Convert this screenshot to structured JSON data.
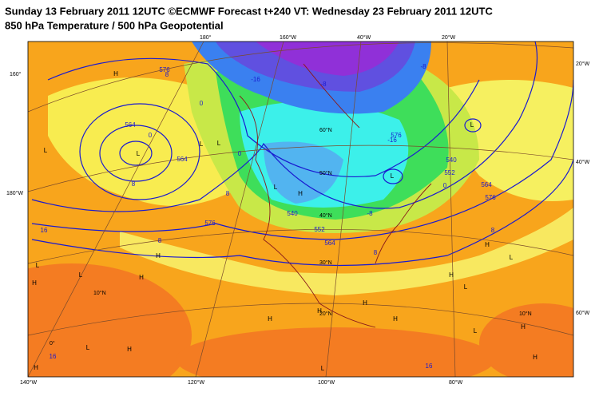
{
  "header": {
    "title": "Sunday 13 February 2011 12UTC ©ECMWF Forecast t+240 VT: Wednesday 23 February 2011 12UTC",
    "subtitle": "850 hPa Temperature / 500 hPa Geopotential"
  },
  "map": {
    "top_labels": [
      "180°",
      "160°W",
      "40°W",
      "20°W"
    ],
    "left_labels": [
      "160°",
      "180°W"
    ],
    "right_labels": [
      "20°W",
      "40°W",
      "60°W"
    ],
    "bottom_labels": [
      "140°W",
      "120°W",
      "100°W",
      "80°W"
    ],
    "lat_labels": [
      "60°N",
      "50°N",
      "40°N",
      "30°N",
      "20°N",
      "10°N",
      "10°N",
      "0°"
    ],
    "contour_labels": [
      "576",
      "8",
      "0",
      "564",
      "0",
      "564",
      "8",
      "16",
      "8",
      "576",
      "16",
      "-16",
      "-8",
      "-16",
      "576",
      "-8",
      "540",
      "552",
      "0",
      "564",
      "576",
      "8",
      "8",
      "16",
      "564",
      "552",
      "540",
      "-8",
      "0",
      "8"
    ],
    "markers": [
      "H",
      "L",
      "L",
      "L",
      "L",
      "H",
      "H",
      "L",
      "H",
      "L",
      "H",
      "H",
      "L",
      "H",
      "H",
      "L",
      "H",
      "H",
      "H",
      "L",
      "H",
      "L",
      "L",
      "H",
      "L",
      "L",
      "H",
      "L",
      "H"
    ]
  }
}
